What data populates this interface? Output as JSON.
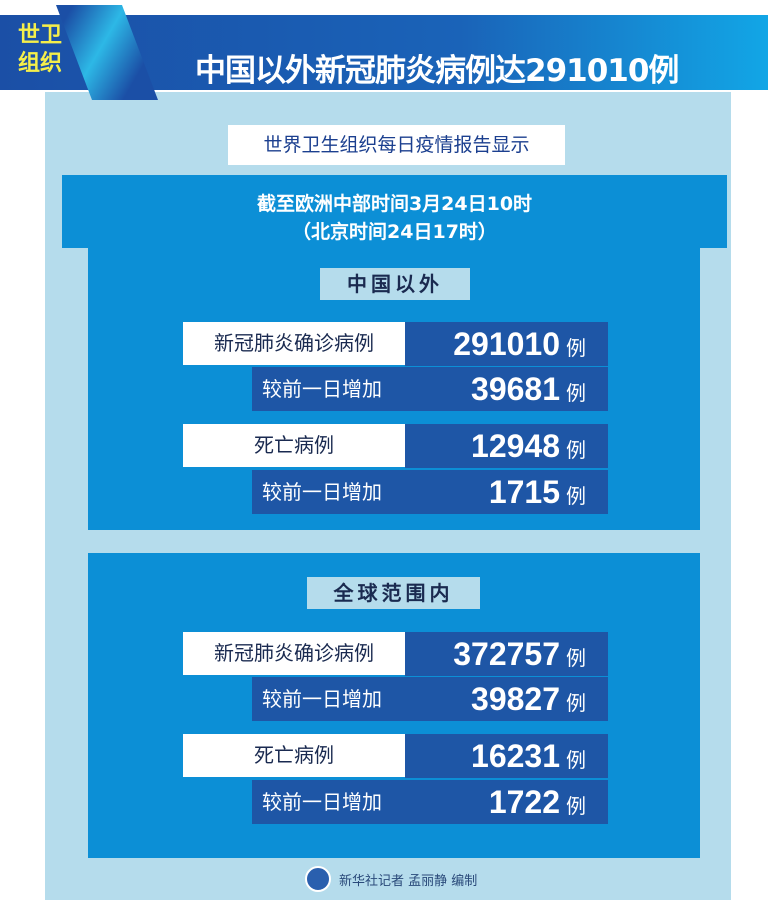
{
  "header": {
    "badge_line1": "世卫",
    "badge_line2": "组织",
    "title": "中国以外新冠肺炎病例达291010例"
  },
  "subtitle": "世界卫生组织每日疫情报告显示",
  "time": {
    "line1": "截至欧洲中部时间3月24日10时",
    "line2": "（北京时间24日17时）"
  },
  "sections": [
    {
      "label": "中国以外",
      "confirmed_label": "新冠肺炎确诊病例",
      "confirmed": "291010",
      "confirmed_new_label": "较前一日增加",
      "confirmed_new": "39681",
      "deaths_label": "死亡病例",
      "deaths": "12948",
      "deaths_new_label": "较前一日增加",
      "deaths_new": "1715"
    },
    {
      "label": "全球范围内",
      "confirmed_label": "新冠肺炎确诊病例",
      "confirmed": "372757",
      "confirmed_new_label": "较前一日增加",
      "confirmed_new": "39827",
      "deaths_label": "死亡病例",
      "deaths": "16231",
      "deaths_new_label": "较前一日增加",
      "deaths_new": "1722"
    }
  ],
  "unit": "例",
  "footer": "新华社记者 孟丽静 编制",
  "colors": {
    "header": "#1b4fa6",
    "panel": "#0c8fd6",
    "number_box": "#1e56a6",
    "background": "#b5dcec",
    "badge_text": "#f5ef4a"
  }
}
